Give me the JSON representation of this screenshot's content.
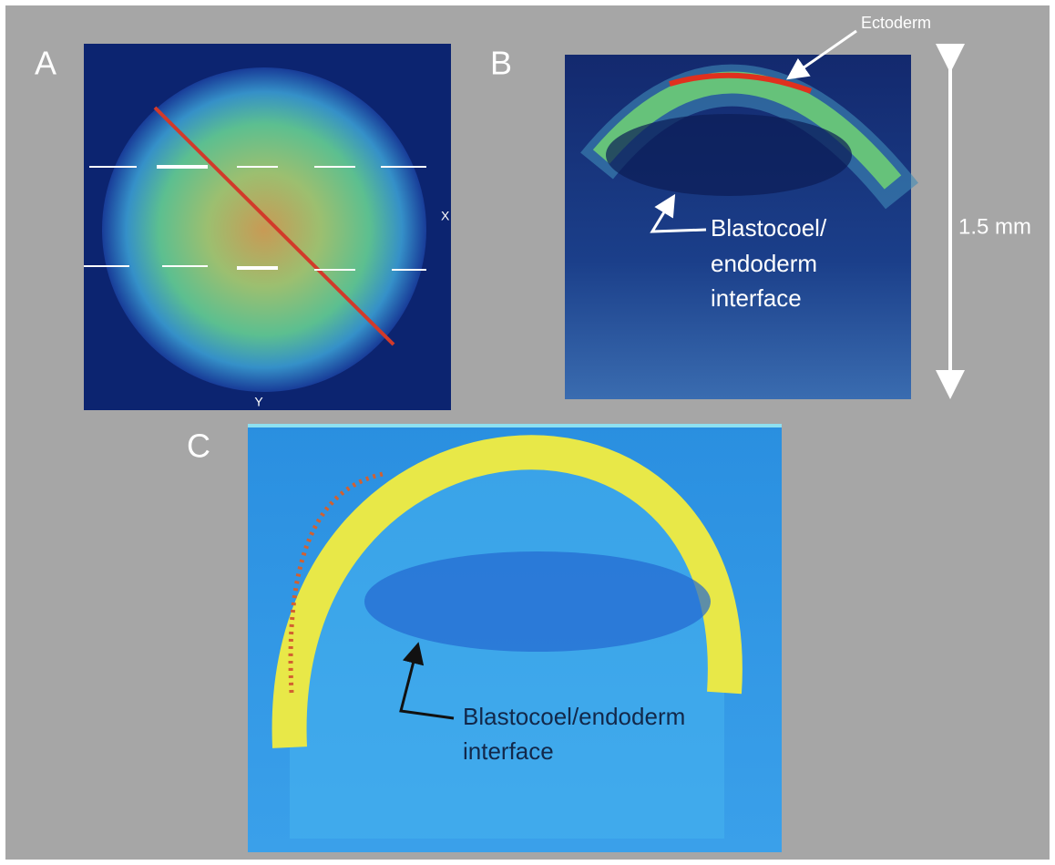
{
  "panels": [
    {
      "label": "A",
      "axis_labels": {
        "x": "X",
        "y": "Y"
      }
    },
    {
      "label": "B",
      "annotations": {
        "ectoderm": "Ectoderm",
        "interface_lines": [
          "Blastocoel/",
          "endoderm",
          "interface"
        ]
      },
      "scale_bar": "1.5 mm"
    },
    {
      "label": "C",
      "annotation_lines": [
        "Blastocoel/endoderm",
        "interface"
      ]
    }
  ]
}
